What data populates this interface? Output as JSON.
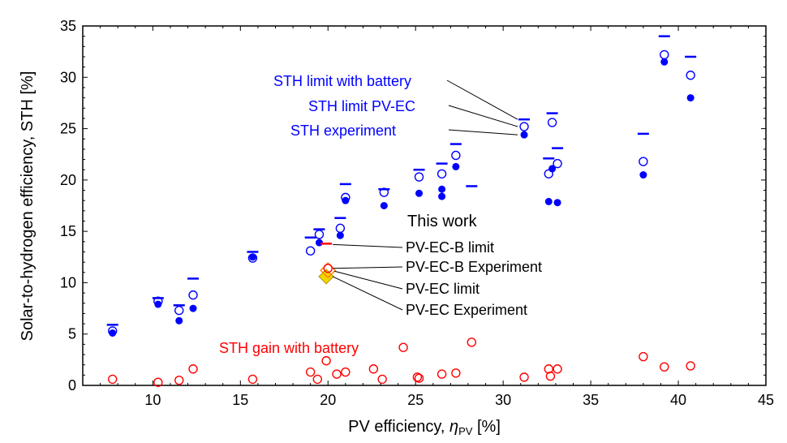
{
  "chart_data": {
    "type": "scatter",
    "xlabel_main": "PV efficiency, ",
    "xlabel_symbol": "η",
    "xlabel_sub": "PV",
    "xlabel_unit": " [%]",
    "ylabel": "Solar-to-hydrogen efficiency, STH [%]",
    "xlim": [
      6,
      45
    ],
    "ylim": [
      0,
      35
    ],
    "xticks": [
      10,
      15,
      20,
      25,
      30,
      35,
      40,
      45
    ],
    "yticks": [
      0,
      5,
      10,
      15,
      20,
      25,
      30,
      35
    ],
    "grid": false,
    "colors": {
      "blue": "#0000ff",
      "red": "#ff0000",
      "orange": "#ff7f00",
      "yellow": "#f2d600",
      "black": "#000000"
    },
    "labels": {
      "limit_battery": "STH limit with battery",
      "limit_pvec": "STH limit PV-EC",
      "experiment": "STH experiment",
      "gain": "STH gain with battery",
      "this_work": "This work",
      "pvecb_limit": "PV-EC-B limit",
      "pvecb_exp": "PV-EC-B Experiment",
      "pvec_limit": "PV-EC limit",
      "pvec_exp": "PV-EC Experiment"
    },
    "series": [
      {
        "key": "limit_battery",
        "marker": "dash",
        "color": "#0000ff",
        "points": [
          [
            7.7,
            5.9
          ],
          [
            10.3,
            8.5
          ],
          [
            11.5,
            7.8
          ],
          [
            12.3,
            10.4
          ],
          [
            15.7,
            13.0
          ],
          [
            19.0,
            14.4
          ],
          [
            19.5,
            15.2
          ],
          [
            20.7,
            16.3
          ],
          [
            21.0,
            19.6
          ],
          [
            23.2,
            19.1
          ],
          [
            25.2,
            21.0
          ],
          [
            26.5,
            21.6
          ],
          [
            27.3,
            23.5
          ],
          [
            28.2,
            19.4
          ],
          [
            31.2,
            25.9
          ],
          [
            32.6,
            22.1
          ],
          [
            32.8,
            26.5
          ],
          [
            33.1,
            23.1
          ],
          [
            38.0,
            24.5
          ],
          [
            39.2,
            34.0
          ],
          [
            40.7,
            32.0
          ]
        ]
      },
      {
        "key": "limit_pvec",
        "marker": "open-circle",
        "color": "#0000ff",
        "points": [
          [
            7.7,
            5.3
          ],
          [
            10.3,
            8.2
          ],
          [
            11.5,
            7.3
          ],
          [
            12.3,
            8.8
          ],
          [
            15.7,
            12.4
          ],
          [
            19.0,
            13.1
          ],
          [
            19.5,
            14.7
          ],
          [
            20.7,
            15.3
          ],
          [
            21.0,
            18.3
          ],
          [
            23.2,
            18.8
          ],
          [
            25.2,
            20.3
          ],
          [
            26.5,
            20.6
          ],
          [
            27.3,
            22.4
          ],
          [
            31.2,
            25.2
          ],
          [
            32.6,
            20.6
          ],
          [
            32.8,
            25.6
          ],
          [
            33.1,
            21.6
          ],
          [
            38.0,
            21.8
          ],
          [
            39.2,
            32.2
          ],
          [
            40.7,
            30.2
          ]
        ]
      },
      {
        "key": "experiment",
        "marker": "filled-circle",
        "color": "#0000ff",
        "points": [
          [
            7.7,
            5.1
          ],
          [
            10.3,
            7.9
          ],
          [
            11.5,
            6.3
          ],
          [
            12.3,
            7.5
          ],
          [
            15.7,
            12.5
          ],
          [
            19.5,
            13.9
          ],
          [
            20.7,
            14.6
          ],
          [
            21.0,
            18.0
          ],
          [
            23.2,
            17.5
          ],
          [
            25.2,
            18.7
          ],
          [
            26.5,
            19.1
          ],
          [
            26.5,
            18.4
          ],
          [
            27.3,
            21.3
          ],
          [
            31.2,
            24.4
          ],
          [
            32.6,
            17.9
          ],
          [
            32.8,
            21.1
          ],
          [
            33.1,
            17.8
          ],
          [
            38.0,
            20.5
          ],
          [
            39.2,
            31.5
          ],
          [
            40.7,
            28.0
          ]
        ]
      },
      {
        "key": "gain",
        "marker": "open-circle",
        "color": "#ff0000",
        "points": [
          [
            7.7,
            0.6
          ],
          [
            10.3,
            0.3
          ],
          [
            11.5,
            0.5
          ],
          [
            12.3,
            1.6
          ],
          [
            15.7,
            0.6
          ],
          [
            19.0,
            1.3
          ],
          [
            19.4,
            0.6
          ],
          [
            19.9,
            2.4
          ],
          [
            20.5,
            1.1
          ],
          [
            21.0,
            1.3
          ],
          [
            22.6,
            1.6
          ],
          [
            23.1,
            0.6
          ],
          [
            24.3,
            3.7
          ],
          [
            25.1,
            0.8
          ],
          [
            25.2,
            0.7
          ],
          [
            26.5,
            1.1
          ],
          [
            27.3,
            1.2
          ],
          [
            28.2,
            4.2
          ],
          [
            31.2,
            0.8
          ],
          [
            32.6,
            1.6
          ],
          [
            32.7,
            0.9
          ],
          [
            33.1,
            1.6
          ],
          [
            38.0,
            2.8
          ],
          [
            39.2,
            1.8
          ],
          [
            40.7,
            1.9
          ]
        ]
      }
    ],
    "this_work": {
      "pvecb_limit": [
        19.9,
        13.8
      ],
      "pvecb_exp": [
        20.0,
        11.4
      ],
      "pvec_limit": [
        20.0,
        11.2
      ],
      "pvec_exp": [
        19.9,
        10.6
      ]
    }
  }
}
